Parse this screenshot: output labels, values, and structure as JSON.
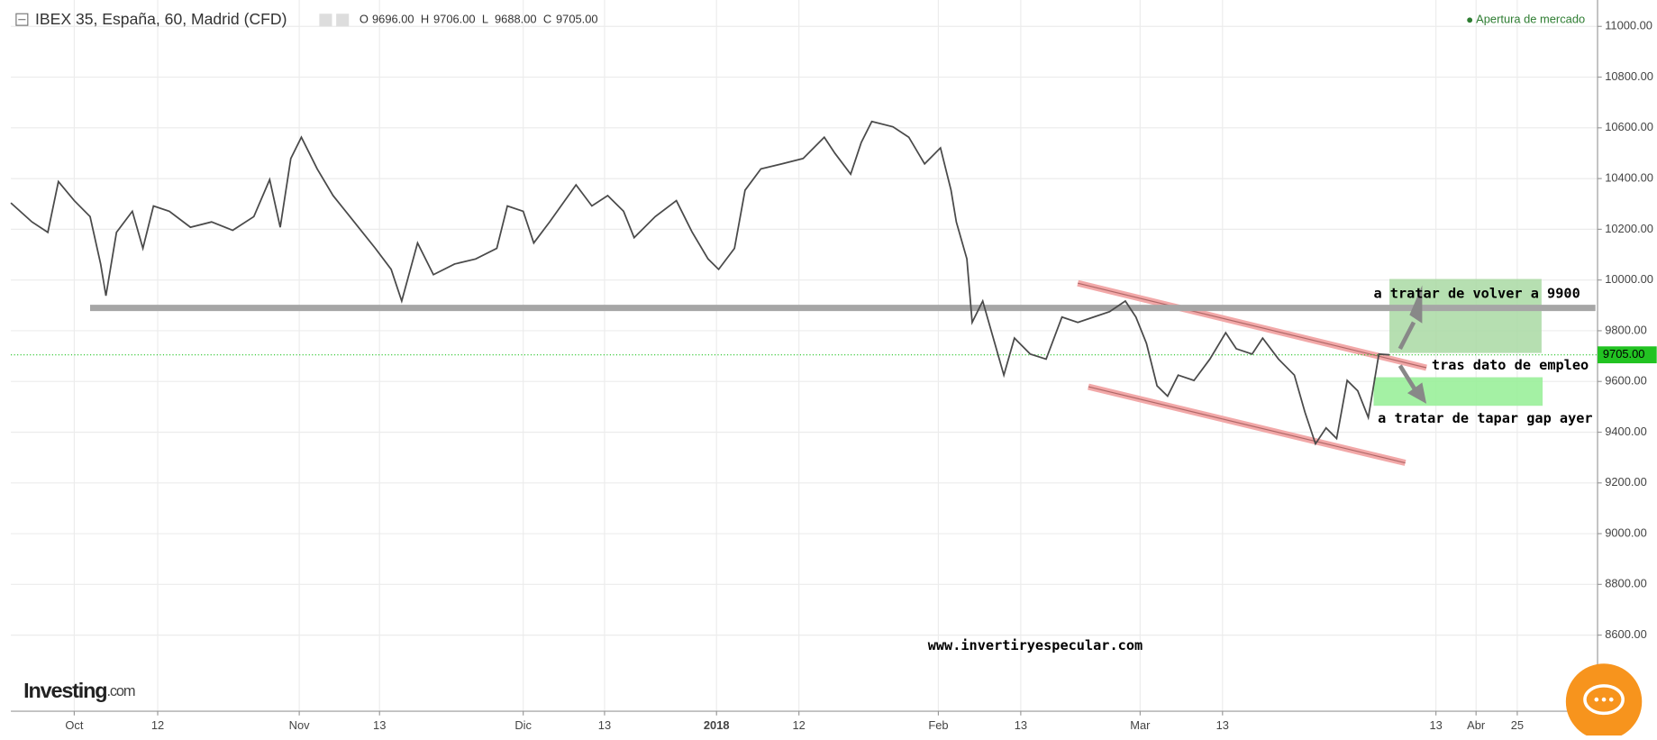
{
  "chart_data": {
    "type": "line",
    "title": "IBEX 35, España, 60, Madrid (CFD)",
    "ohlc_labels": [
      "O",
      "H",
      "L",
      "C"
    ],
    "ohlc_values": [
      {
        "value": 9696,
        "label": "9696.00"
      },
      {
        "value": 9706,
        "label": "9706.00"
      },
      {
        "value": 9688,
        "label": "9688.00"
      },
      {
        "value": 9705,
        "label": "9705.00"
      }
    ],
    "market_status": "Apertura de mercado",
    "x": [
      0,
      2,
      3.5,
      4.5,
      6,
      7.5,
      8.5,
      9,
      10,
      11.5,
      12.5,
      13.5,
      15,
      17,
      19,
      21,
      23,
      24.5,
      25.5,
      26.5,
      27.5,
      29,
      30.5,
      32.5,
      34.5,
      36,
      37,
      38.5,
      40,
      42,
      44,
      46,
      47,
      48.5,
      49.5,
      51,
      53.5,
      55,
      56.5,
      58,
      59,
      61,
      63,
      64.5,
      66,
      67,
      68.5,
      69.5,
      71,
      73,
      75,
      77,
      78,
      79.5,
      80.5,
      81.5,
      83.5,
      85,
      86.5,
      88,
      89,
      89.5,
      90.5,
      91,
      92,
      93,
      94,
      95,
      96.5,
      98,
      99.5,
      101,
      102.5,
      104,
      105.5,
      106.5,
      107.5,
      108.5,
      109.5,
      110.5,
      112,
      113.5,
      115,
      116,
      117.5,
      118.5,
      120,
      121.5,
      122.5,
      123.5,
      124.5,
      125.5,
      126.5,
      127.5,
      128.5,
      129.5,
      130.5
    ],
    "series": [
      {
        "name": "IBEX 35",
        "color": "#4a4a4a",
        "values": [
          10304,
          10229,
          10188,
          10388,
          10313,
          10250,
          10063,
          9938,
          10188,
          10271,
          10125,
          10292,
          10271,
          10208,
          10229,
          10196,
          10250,
          10396,
          10208,
          10479,
          10563,
          10438,
          10333,
          10229,
          10125,
          10042,
          9917,
          10146,
          10021,
          10063,
          10083,
          10125,
          10292,
          10271,
          10146,
          10229,
          10375,
          10292,
          10333,
          10271,
          10167,
          10250,
          10313,
          10188,
          10083,
          10042,
          10125,
          10354,
          10438,
          10458,
          10479,
          10563,
          10500,
          10417,
          10542,
          10625,
          10604,
          10563,
          10458,
          10521,
          10354,
          10229,
          10083,
          9833,
          9917,
          9771,
          9625,
          9771,
          9708,
          9688,
          9854,
          9833,
          9854,
          9875,
          9917,
          9854,
          9750,
          9583,
          9542,
          9625,
          9604,
          9688,
          9792,
          9729,
          9708,
          9771,
          9688,
          9625,
          9479,
          9354,
          9417,
          9375,
          9604,
          9563,
          9458,
          9708,
          9705
        ]
      }
    ],
    "xlim": [
      0,
      150
    ],
    "xticks": [
      {
        "value": 6,
        "label": "Oct"
      },
      {
        "value": 13.9,
        "label": "12"
      },
      {
        "value": 27.3,
        "label": "Nov"
      },
      {
        "value": 34.9,
        "label": "13"
      },
      {
        "value": 48.5,
        "label": "Dic"
      },
      {
        "value": 56.2,
        "label": "13"
      },
      {
        "value": 66.8,
        "label": "2018"
      },
      {
        "value": 74.6,
        "label": "12"
      },
      {
        "value": 87.8,
        "label": "Feb"
      },
      {
        "value": 95.6,
        "label": "13"
      },
      {
        "value": 106.9,
        "label": "Mar"
      },
      {
        "value": 114.7,
        "label": "13"
      },
      {
        "value": 134.9,
        "label": "13"
      },
      {
        "value": 138.7,
        "label": "Abr"
      },
      {
        "value": 142.6,
        "label": "25"
      }
    ],
    "ylim": [
      8300,
      11104
    ],
    "yticks": [
      {
        "value": 8600,
        "label": "8600.00"
      },
      {
        "value": 8800,
        "label": "8800.00"
      },
      {
        "value": 9000,
        "label": "9000.00"
      },
      {
        "value": 9200,
        "label": "9200.00"
      },
      {
        "value": 9400,
        "label": "9400.00"
      },
      {
        "value": 9600,
        "label": "9600.00"
      },
      {
        "value": 9800,
        "label": "9800.00"
      },
      {
        "value": 10000,
        "label": "10000.00"
      },
      {
        "value": 10200,
        "label": "10200.00"
      },
      {
        "value": 10400,
        "label": "10400.00"
      },
      {
        "value": 10600,
        "label": "10600.00"
      },
      {
        "value": 10800,
        "label": "10800.00"
      },
      {
        "value": 11000,
        "label": "11000.00"
      }
    ],
    "grid": true,
    "support_level": {
      "value": 9890,
      "color": "#a6a6a6"
    },
    "last_price": {
      "value": 9705,
      "label": "9705.00",
      "color": "#22c322"
    },
    "annotations": [
      "a tratar de volver a 9900",
      "tras dato de empleo",
      "a tratar de tapar gap ayer"
    ],
    "watermark": "www.invertiryespecular.com",
    "logo": [
      "Investing",
      ".com"
    ]
  }
}
